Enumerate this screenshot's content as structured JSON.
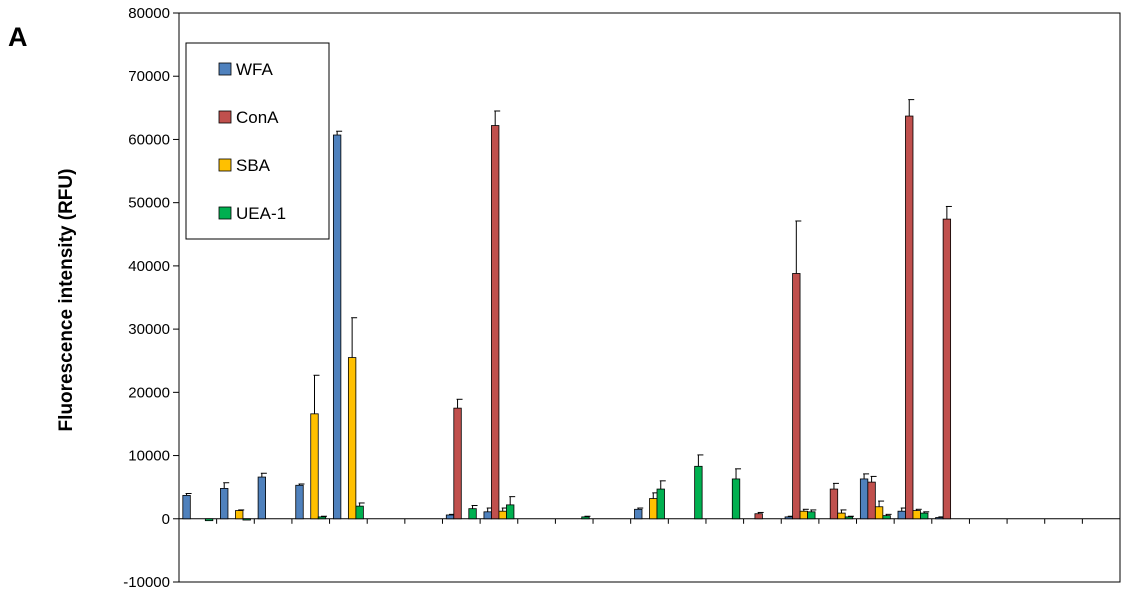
{
  "chart_data": {
    "type": "bar",
    "panel_label": "A",
    "title": "",
    "xlabel": "",
    "ylabel": "Fluorescence intensity (RFU)",
    "ylim": [
      -10000,
      80000
    ],
    "yticks": [
      "-10000",
      "0",
      "10000",
      "20000",
      "30000",
      "40000",
      "50000",
      "60000",
      "70000",
      "80000"
    ],
    "grid": false,
    "legend_position": "top-left",
    "group_count": 25,
    "series": [
      {
        "name": "WFA",
        "color": "#4f81bd",
        "values": [
          3700,
          4800,
          6600,
          5300,
          60700,
          0,
          0,
          600,
          1100,
          0,
          0,
          0,
          1500,
          0,
          0,
          0,
          300,
          0,
          6300,
          1200,
          200,
          0,
          0,
          0,
          0
        ],
        "errors": [
          300,
          900,
          600,
          200,
          600,
          0,
          0,
          100,
          600,
          0,
          0,
          0,
          200,
          0,
          0,
          0,
          100,
          0,
          800,
          500,
          100,
          0,
          0,
          0,
          0
        ]
      },
      {
        "name": "ConA",
        "color": "#c0504d",
        "values": [
          0,
          0,
          0,
          0,
          0,
          0,
          0,
          17500,
          62200,
          0,
          0,
          0,
          0,
          0,
          0,
          800,
          38800,
          4700,
          5800,
          63700,
          47400,
          0,
          0,
          0,
          0
        ],
        "errors": [
          0,
          0,
          0,
          0,
          0,
          0,
          0,
          1400,
          2300,
          0,
          0,
          0,
          0,
          0,
          0,
          200,
          8300,
          900,
          900,
          2600,
          2000,
          0,
          0,
          0,
          0
        ],
        "note_unused": ""
      },
      {
        "name": "SBA",
        "color": "#ffc000",
        "values": [
          0,
          1300,
          0,
          16600,
          25500,
          0,
          0,
          0,
          1200,
          0,
          0,
          0,
          3200,
          0,
          0,
          0,
          1200,
          900,
          1900,
          1300,
          0,
          0,
          0,
          0,
          0
        ],
        "errors": [
          0,
          100,
          0,
          6100,
          6300,
          0,
          0,
          0,
          500,
          0,
          0,
          0,
          900,
          0,
          0,
          0,
          300,
          500,
          900,
          200,
          0,
          0,
          0,
          0,
          0
        ]
      },
      {
        "name": "UEA-1",
        "color": "#00b050",
        "values": [
          -300,
          -200,
          0,
          300,
          2000,
          0,
          0,
          1600,
          2200,
          0,
          300,
          0,
          4700,
          8300,
          6300,
          0,
          1100,
          300,
          500,
          900,
          0,
          0,
          0,
          0,
          0
        ],
        "errors": [
          0,
          0,
          0,
          100,
          500,
          0,
          0,
          500,
          1300,
          0,
          100,
          0,
          1300,
          1800,
          1600,
          0,
          300,
          100,
          200,
          200,
          0,
          0,
          0,
          0,
          0
        ]
      }
    ]
  }
}
